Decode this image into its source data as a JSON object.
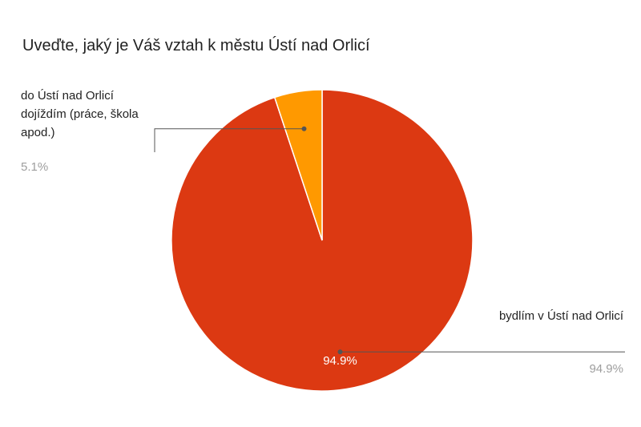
{
  "chart_data": {
    "type": "pie",
    "title": "Uveďte, jaký je Váš vztah k městu Ústí nad Orlicí",
    "categories": [
      "bydlím v Ústí nad Orlicí",
      "do Ústí nad Orlicí dojíždím (práce, škola apod.)"
    ],
    "values": [
      94.9,
      5.1
    ],
    "value_labels": [
      "94.9%",
      "5.1%"
    ],
    "colors": [
      "#dc3912",
      "#ff9900"
    ]
  }
}
